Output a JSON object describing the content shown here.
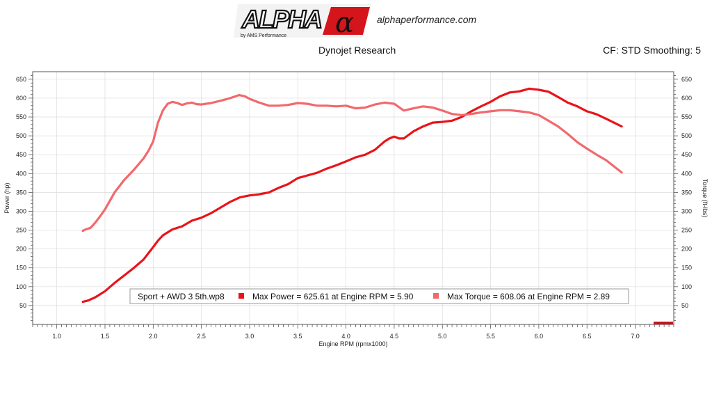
{
  "header": {
    "logo_text": "ALPHA",
    "logo_alpha": "α",
    "logo_sub": "by AMS Performance",
    "site": "alphaperformance.com",
    "title": "Dynojet Research",
    "correction": "CF: STD Smoothing: 5"
  },
  "colors": {
    "power": "#e8141a",
    "torque": "#f2686c",
    "grid": "#dcdcdc"
  },
  "chart_data": {
    "type": "line",
    "xlabel": "Engine RPM (rpmx1000)",
    "ylabel": "Power (hp)",
    "y2label": "Torque (ft-lbs)",
    "xlim": [
      0.75,
      7.4
    ],
    "ylim": [
      0,
      670
    ],
    "xticks": [
      "1.0",
      "1.5",
      "2.0",
      "2.5",
      "3.0",
      "3.5",
      "4.0",
      "4.5",
      "5.0",
      "5.5",
      "6.0",
      "6.5",
      "7.0"
    ],
    "yticks": [
      "50",
      "100",
      "150",
      "200",
      "250",
      "300",
      "350",
      "400",
      "450",
      "500",
      "550",
      "600",
      "650"
    ],
    "grid": true,
    "legend": {
      "file": "Sport + AWD 3 5th.wp8",
      "power": "Max Power = 625.61 at Engine RPM = 5.90",
      "torque": "Max Torque = 608.06 at Engine RPM = 2.89"
    },
    "series": [
      {
        "key": "power",
        "x": [
          1.27,
          1.32,
          1.4,
          1.5,
          1.6,
          1.7,
          1.8,
          1.9,
          2.0,
          2.05,
          2.1,
          2.2,
          2.3,
          2.4,
          2.5,
          2.6,
          2.7,
          2.8,
          2.9,
          3.0,
          3.1,
          3.2,
          3.3,
          3.4,
          3.5,
          3.6,
          3.7,
          3.8,
          3.9,
          4.0,
          4.1,
          4.2,
          4.3,
          4.4,
          4.45,
          4.5,
          4.55,
          4.6,
          4.7,
          4.8,
          4.9,
          5.0,
          5.1,
          5.2,
          5.3,
          5.4,
          5.5,
          5.6,
          5.7,
          5.8,
          5.9,
          6.0,
          6.1,
          6.2,
          6.3,
          6.4,
          6.5,
          6.6,
          6.7,
          6.86
        ],
        "values": [
          60,
          63,
          72,
          88,
          110,
          130,
          150,
          172,
          205,
          222,
          236,
          252,
          260,
          275,
          283,
          295,
          310,
          325,
          337,
          342,
          345,
          350,
          362,
          372,
          388,
          395,
          402,
          413,
          422,
          432,
          443,
          450,
          463,
          485,
          493,
          498,
          493,
          493,
          512,
          525,
          535,
          537,
          540,
          550,
          565,
          578,
          590,
          605,
          615,
          618,
          625,
          622,
          617,
          603,
          588,
          578,
          565,
          557,
          545,
          525
        ]
      },
      {
        "key": "torque",
        "x": [
          1.27,
          1.3,
          1.35,
          1.4,
          1.45,
          1.5,
          1.6,
          1.7,
          1.8,
          1.9,
          1.95,
          2.0,
          2.05,
          2.1,
          2.15,
          2.2,
          2.25,
          2.3,
          2.35,
          2.4,
          2.45,
          2.5,
          2.6,
          2.7,
          2.8,
          2.89,
          2.95,
          3.0,
          3.1,
          3.2,
          3.3,
          3.4,
          3.5,
          3.6,
          3.7,
          3.8,
          3.9,
          4.0,
          4.1,
          4.2,
          4.3,
          4.4,
          4.5,
          4.6,
          4.7,
          4.8,
          4.9,
          5.0,
          5.1,
          5.2,
          5.3,
          5.4,
          5.5,
          5.6,
          5.7,
          5.8,
          5.9,
          6.0,
          6.1,
          6.2,
          6.3,
          6.4,
          6.5,
          6.6,
          6.7,
          6.86
        ],
        "values": [
          248,
          252,
          256,
          270,
          287,
          305,
          350,
          383,
          410,
          440,
          460,
          485,
          535,
          567,
          585,
          590,
          587,
          582,
          586,
          588,
          584,
          583,
          587,
          593,
          600,
          608,
          605,
          598,
          588,
          580,
          580,
          582,
          587,
          585,
          580,
          580,
          578,
          580,
          573,
          575,
          583,
          588,
          585,
          567,
          573,
          578,
          575,
          567,
          558,
          555,
          558,
          562,
          565,
          568,
          568,
          565,
          562,
          555,
          540,
          525,
          505,
          483,
          466,
          450,
          435,
          403
        ]
      }
    ]
  }
}
